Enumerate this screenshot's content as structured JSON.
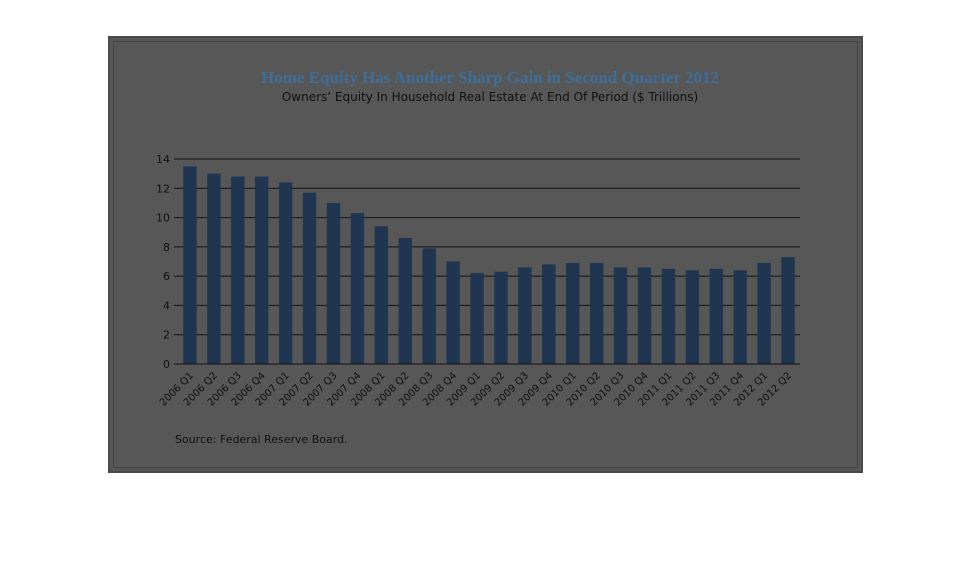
{
  "chart_data": {
    "type": "bar",
    "title": "Home Equity Has Another Sharp Gain in Second Quarter 2012",
    "subtitle": "Owners’ Equity In Household Real Estate At End Of Period ($ Trillions)",
    "source": "Source:  Federal Reserve Board.",
    "categories": [
      "2006 Q1",
      "2006 Q2",
      "2006 Q3",
      "2006 Q4",
      "2007 Q1",
      "2007 Q2",
      "2007 Q3",
      "2007 Q4",
      "2008 Q1",
      "2008 Q2",
      "2008 Q3",
      "2008 Q4",
      "2009 Q1",
      "2009 Q2",
      "2009 Q3",
      "2009 Q4",
      "2010 Q1",
      "2010 Q2",
      "2010 Q3",
      "2010 Q4",
      "2011 Q1",
      "2011 Q2",
      "2011 Q3",
      "2011 Q4",
      "2012 Q1",
      "2012 Q2"
    ],
    "values": [
      13.5,
      13.0,
      12.8,
      12.8,
      12.4,
      11.7,
      11.0,
      10.3,
      9.4,
      8.6,
      7.9,
      7.0,
      6.2,
      6.3,
      6.6,
      6.8,
      6.9,
      6.9,
      6.6,
      6.6,
      6.5,
      6.4,
      6.5,
      6.4,
      6.9,
      7.3
    ],
    "ylim": [
      0,
      14
    ],
    "yticks": [
      0,
      2,
      4,
      6,
      8,
      10,
      12,
      14
    ],
    "grid": true,
    "colors": {
      "bar": "#1f3550",
      "background": "#575757",
      "title": "#3e6f9c",
      "grid": "#111111"
    }
  }
}
